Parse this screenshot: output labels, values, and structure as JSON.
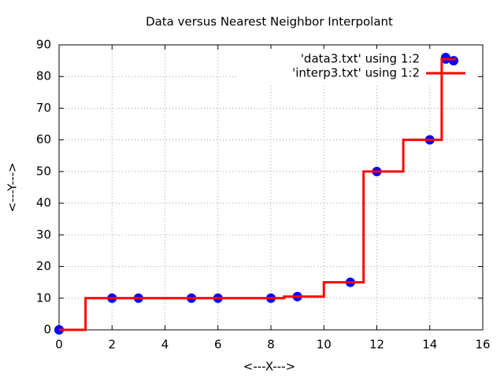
{
  "chart_data": {
    "type": "scatter-line",
    "title": "Data versus Nearest Neighbor Interpolant",
    "x_label": "<---X--->",
    "y_label": "<---Y--->",
    "xlim": [
      0,
      16
    ],
    "xticks": [
      0,
      2,
      4,
      6,
      8,
      10,
      12,
      14,
      16
    ],
    "ylim": [
      0,
      90
    ],
    "yticks": [
      0,
      10,
      20,
      30,
      40,
      50,
      60,
      70,
      80,
      90
    ],
    "grid": true,
    "legend": "top-right",
    "series": [
      {
        "name": "'data3.txt' using 1:2",
        "color": "#0000ff",
        "mode": "points",
        "x": [
          0,
          2,
          3,
          5,
          6,
          8,
          9,
          11,
          12,
          14,
          14.6,
          14.9
        ],
        "values": [
          0,
          10,
          10,
          10,
          10,
          10,
          10.5,
          15,
          50,
          60,
          86,
          85
        ]
      },
      {
        "name": "'interp3.txt' using 1:2",
        "color": "#ff0000",
        "mode": "line",
        "x": [
          0,
          1,
          1,
          8.5,
          8.5,
          10,
          10,
          11.5,
          11.5,
          13,
          13,
          14.45,
          14.45,
          15
        ],
        "values": [
          0,
          0,
          10,
          10,
          10.5,
          10.5,
          15,
          15,
          50,
          50,
          60,
          60,
          85.5,
          85.5
        ]
      }
    ]
  }
}
